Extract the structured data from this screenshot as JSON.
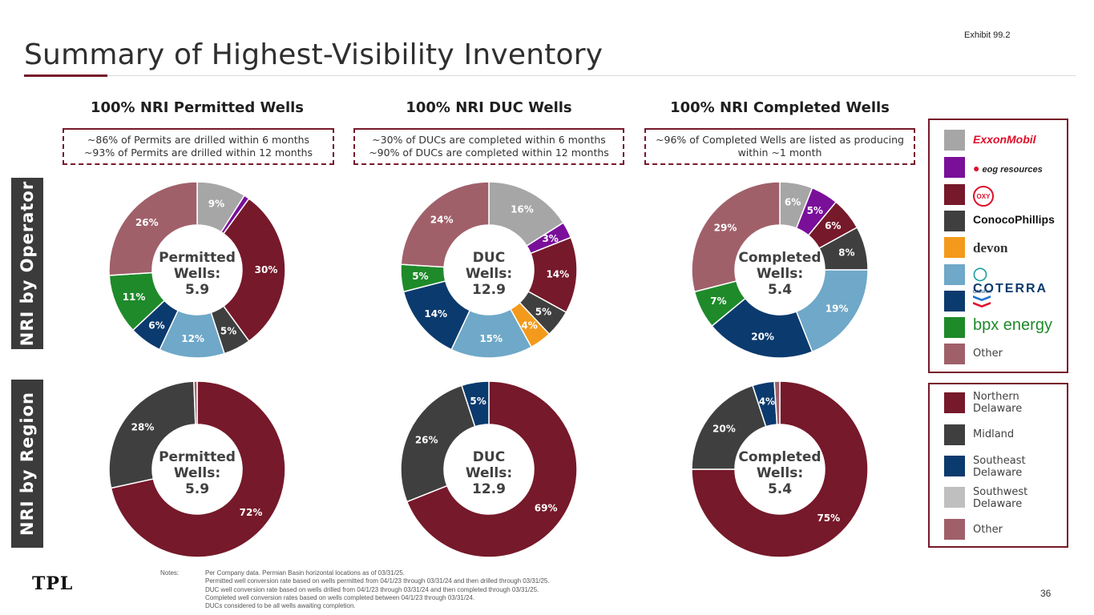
{
  "exhibit": "Exhibit 99.2",
  "title": "Summary of Highest-Visibility Inventory",
  "columns": [
    {
      "heading": "100% NRI Permitted Wells",
      "note_line1": "~86% of Permits are drilled within 6 months",
      "note_line2": "~93% of Permits are drilled within 12 months"
    },
    {
      "heading": "100% NRI DUC Wells",
      "note_line1": "~30% of DUCs are completed within 6 months",
      "note_line2": "~90% of DUCs are completed within 12 months"
    },
    {
      "heading": "100% NRI Completed Wells",
      "note_line1": "~96% of Completed Wells are listed as producing",
      "note_line2": "within ~1 month"
    }
  ],
  "row_labels": {
    "operator": "NRI by Operator",
    "region": "NRI by Region"
  },
  "legend_operator": [
    {
      "label": "ExxonMobil",
      "color": "#a6a6a6"
    },
    {
      "label": "eog resources",
      "color": "#7a0f9a"
    },
    {
      "label": "OXY",
      "color": "#76192a"
    },
    {
      "label": "ConocoPhillips",
      "color": "#3f3f3f"
    },
    {
      "label": "devon",
      "color": "#f39a1c"
    },
    {
      "label": "COTERRA",
      "color": "#6fa8c8"
    },
    {
      "label": "Chevron",
      "color": "#0b3a6e"
    },
    {
      "label": "bpx energy",
      "color": "#1f8a2a"
    },
    {
      "label": "Other",
      "color": "#a0606a"
    }
  ],
  "legend_region": [
    {
      "line1": "Northern",
      "line2": "Delaware",
      "color": "#76192a"
    },
    {
      "line1": "Midland",
      "line2": "",
      "color": "#3f3f3f"
    },
    {
      "line1": "Southeast",
      "line2": "Delaware",
      "color": "#0b3a6e"
    },
    {
      "line1": "Southwest",
      "line2": "Delaware",
      "color": "#bfbfbf"
    },
    {
      "line1": "Other",
      "line2": "",
      "color": "#a0606a"
    }
  ],
  "chart_data": [
    {
      "type": "pie",
      "id": "op-permitted",
      "center_line1": "Permitted",
      "center_line2": "Wells:",
      "center_line3": "5.9",
      "categories": [
        "ExxonMobil",
        "eog resources",
        "OXY",
        "ConocoPhillips",
        "devon",
        "COTERRA",
        "Chevron",
        "bpx energy",
        "Other"
      ],
      "values": [
        9,
        1,
        30,
        5,
        0,
        12,
        6,
        11,
        26
      ],
      "labels": [
        "9%",
        "",
        "30%",
        "5%",
        "",
        "12%",
        "6%",
        "11%",
        "26%"
      ]
    },
    {
      "type": "pie",
      "id": "op-duc",
      "center_line1": "DUC",
      "center_line2": "Wells:",
      "center_line3": "12.9",
      "categories": [
        "ExxonMobil",
        "eog resources",
        "OXY",
        "ConocoPhillips",
        "devon",
        "COTERRA",
        "Chevron",
        "bpx energy",
        "Other"
      ],
      "values": [
        16,
        3,
        14,
        5,
        4,
        15,
        14,
        5,
        24
      ],
      "labels": [
        "16%",
        "3%",
        "14%",
        "5%",
        "4%",
        "15%",
        "14%",
        "5%",
        "24%"
      ]
    },
    {
      "type": "pie",
      "id": "op-completed",
      "center_line1": "Completed",
      "center_line2": "Wells:",
      "center_line3": "5.4",
      "categories": [
        "ExxonMobil",
        "eog resources",
        "OXY",
        "ConocoPhillips",
        "devon",
        "COTERRA",
        "Chevron",
        "bpx energy",
        "Other"
      ],
      "values": [
        6,
        5,
        6,
        8,
        0,
        19,
        20,
        7,
        29
      ],
      "labels": [
        "6%",
        "5%",
        "6%",
        "8%",
        "",
        "19%",
        "20%",
        "7%",
        "29%"
      ]
    },
    {
      "type": "pie",
      "id": "rg-permitted",
      "center_line1": "Permitted",
      "center_line2": "Wells:",
      "center_line3": "5.9",
      "categories": [
        "Northern Delaware",
        "Midland",
        "Southeast Delaware",
        "Southwest Delaware",
        "Other"
      ],
      "values": [
        72,
        28,
        0,
        0,
        0.6
      ],
      "labels": [
        "72%",
        "28%",
        "",
        "",
        ""
      ]
    },
    {
      "type": "pie",
      "id": "rg-duc",
      "center_line1": "DUC",
      "center_line2": "Wells:",
      "center_line3": "12.9",
      "categories": [
        "Northern Delaware",
        "Midland",
        "Southeast Delaware",
        "Southwest Delaware",
        "Other"
      ],
      "values": [
        69,
        26,
        5,
        0,
        0
      ],
      "labels": [
        "69%",
        "26%",
        "5%",
        "",
        ""
      ]
    },
    {
      "type": "pie",
      "id": "rg-completed",
      "center_line1": "Completed",
      "center_line2": "Wells:",
      "center_line3": "5.4",
      "categories": [
        "Northern Delaware",
        "Midland",
        "Southeast Delaware",
        "Southwest Delaware",
        "Other"
      ],
      "values": [
        75,
        20,
        4,
        0,
        1
      ],
      "labels": [
        "75%",
        "20%",
        "4%",
        "",
        ""
      ]
    }
  ],
  "notes_label": "Notes:",
  "notes": [
    "Per Company data. Permian Basin horizontal locations as of 03/31/25.",
    "Permitted well conversion rate based on wells permitted from 04/1/23 through 03/31/24 and then drilled through 03/31/25.",
    "DUC well conversion rate based on wells drilled from 04/1/23 through 03/31/24 and then completed through 03/31/25.",
    "Completed well conversion rates based on wells completed between 04/1/23 through 03/31/24.",
    "DUCs considered to be all wells awaiting completion."
  ],
  "footer_logo": "TPL",
  "page_number": "36"
}
